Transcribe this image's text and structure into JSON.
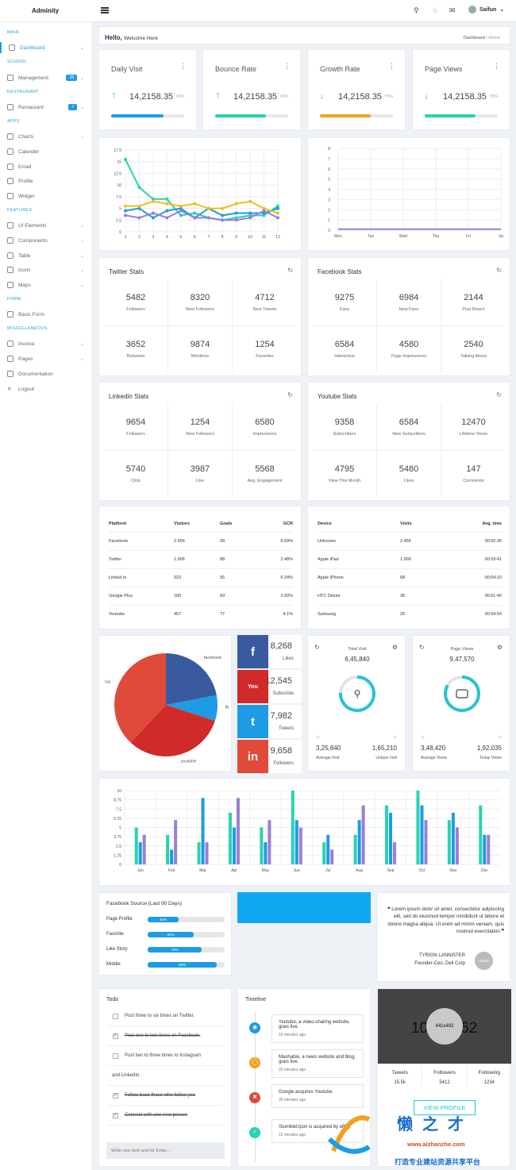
{
  "brand": "Adminity",
  "user": {
    "name": "Saifun"
  },
  "sidebar": {
    "sections": [
      "MAIN",
      "SCHOOL",
      "RESTAURANT",
      "APPS",
      "FEATURES",
      "FORM",
      "MISCELLANEOUS"
    ],
    "items": [
      {
        "label": "Dashboard"
      },
      {
        "label": "Management",
        "badge": "28"
      },
      {
        "label": "Restaurant",
        "badge": "7"
      },
      {
        "label": "Charts"
      },
      {
        "label": "Calender"
      },
      {
        "label": "Email"
      },
      {
        "label": "Profile"
      },
      {
        "label": "Widget"
      },
      {
        "label": "UI Elements"
      },
      {
        "label": "Components"
      },
      {
        "label": "Table"
      },
      {
        "label": "Icons"
      },
      {
        "label": "Maps"
      },
      {
        "label": "Basic Form"
      },
      {
        "label": "Invoice"
      },
      {
        "label": "Pages"
      },
      {
        "label": "Documentation"
      },
      {
        "label": "Logout"
      }
    ]
  },
  "header": {
    "hello": "Hello,",
    "welcome": "Welcome Here",
    "crumb_home": "Dashboard",
    "crumb_current": "Home"
  },
  "stats": [
    {
      "title": "Daily Visit",
      "value": "14,2158.35",
      "pct": "70%",
      "arrow": "↑",
      "color": "#1d9ce5",
      "progress": 0.72
    },
    {
      "title": "Bounce Rate",
      "value": "14,2158.35",
      "pct": "70%",
      "arrow": "↑",
      "color": "#28d3b0",
      "progress": 0.7
    },
    {
      "title": "Growth Rate",
      "value": "14,2158.35",
      "pct": "70%",
      "arrow": "↓",
      "color": "#f0a21e",
      "progress": 0.7
    },
    {
      "title": "Page Views",
      "value": "14,2158.35",
      "pct": "70%",
      "arrow": "↓",
      "color": "#28d3b0",
      "progress": 0.7
    }
  ],
  "chart_data": [
    {
      "type": "line",
      "x": [
        1,
        2,
        3,
        4,
        5,
        6,
        7,
        8,
        9,
        10,
        11,
        12
      ],
      "ylim": [
        0,
        17.5
      ],
      "yticks": [
        "0",
        "2.5",
        "5",
        "7.5",
        "10",
        "12.5",
        "15",
        "17.5"
      ],
      "series": [
        {
          "color": "#28d3b0",
          "values": [
            15.5,
            9.5,
            7,
            7,
            3.5,
            4,
            3,
            2.5,
            3,
            3.5,
            3.5,
            5.5
          ]
        },
        {
          "color": "#1d9ce5",
          "values": [
            4.5,
            5,
            3,
            4.5,
            5,
            3,
            5,
            3.5,
            4,
            4,
            4,
            5
          ]
        },
        {
          "color": "#f0bf1e",
          "values": [
            5.5,
            5.5,
            6.5,
            6,
            5.5,
            6,
            5,
            5,
            6,
            6.5,
            5,
            4
          ]
        },
        {
          "color": "#9b7fd4",
          "values": [
            3.5,
            3,
            4,
            3,
            4.5,
            3,
            3,
            2.5,
            2.5,
            3,
            4.5,
            3
          ]
        }
      ]
    },
    {
      "type": "line",
      "categories": [
        "Mon",
        "Tue",
        "Wed",
        "Thu",
        "Fri",
        "Sa"
      ],
      "ylim": [
        0,
        8
      ],
      "yticks": [
        "0",
        "1",
        "2",
        "3",
        "4",
        "5",
        "6",
        "7",
        "8"
      ],
      "series": [
        {
          "color": "#9b7fd4",
          "values": [
            0.1,
            0.1,
            0.1,
            0.1,
            0.1,
            0.1
          ]
        }
      ]
    },
    {
      "type": "pie",
      "labels": [
        "facebook",
        "fb",
        "youtube",
        "lus"
      ],
      "values": [
        22,
        8,
        32,
        38
      ],
      "colors": [
        "#3a5aa0",
        "#1d9ce5",
        "#d12a2a",
        "#e04a3a"
      ]
    },
    {
      "type": "bar",
      "categories": [
        "Jan",
        "Feb",
        "Mar",
        "Apr",
        "May",
        "Jun",
        "Jul",
        "Aug",
        "Sep",
        "Oct",
        "Nov",
        "Dec"
      ],
      "ylim": [
        0,
        10
      ],
      "yticks": [
        "0",
        "1.25",
        "2.5",
        "3.75",
        "5",
        "6.25",
        "7.5",
        "8.75",
        "10"
      ],
      "series": [
        {
          "color": "#28d3b0",
          "values": [
            5,
            4,
            3,
            7,
            5,
            10,
            3,
            4,
            8,
            10,
            6,
            8
          ]
        },
        {
          "color": "#1d9ce5",
          "values": [
            3,
            2,
            9,
            5,
            3,
            6,
            4,
            6,
            7,
            8,
            7,
            4
          ]
        },
        {
          "color": "#9b7fd4",
          "values": [
            4,
            6,
            3,
            9,
            6,
            5,
            2,
            8,
            3,
            6,
            5,
            4
          ]
        }
      ]
    }
  ],
  "twitter": {
    "title": "Twitter Stats",
    "cells": [
      {
        "v": "5482",
        "l": "Followers"
      },
      {
        "v": "8320",
        "l": "New Followers"
      },
      {
        "v": "4712",
        "l": "New Tweets"
      },
      {
        "v": "3652",
        "l": "Retweets"
      },
      {
        "v": "9874",
        "l": "Mentions"
      },
      {
        "v": "1254",
        "l": "Favorites"
      }
    ]
  },
  "facebook": {
    "title": "Facebook Stats",
    "cells": [
      {
        "v": "9275",
        "l": "Fans"
      },
      {
        "v": "6984",
        "l": "New Fans"
      },
      {
        "v": "2144",
        "l": "Post Reach"
      },
      {
        "v": "6584",
        "l": "Interaction"
      },
      {
        "v": "4580",
        "l": "Page Impressions"
      },
      {
        "v": "2540",
        "l": "Talking About"
      }
    ]
  },
  "linkedin": {
    "title": "Linkedin Stats",
    "cells": [
      {
        "v": "9654",
        "l": "Followers"
      },
      {
        "v": "1254",
        "l": "New Followers"
      },
      {
        "v": "6580",
        "l": "Impressions"
      },
      {
        "v": "5740",
        "l": "Click"
      },
      {
        "v": "3987",
        "l": "Like"
      },
      {
        "v": "5568",
        "l": "Avg. Engagement"
      }
    ]
  },
  "youtube": {
    "title": "Youtube Stats",
    "cells": [
      {
        "v": "9358",
        "l": "Subscribers"
      },
      {
        "v": "6584",
        "l": "New Subscribers"
      },
      {
        "v": "12470",
        "l": "Lifetime Views"
      },
      {
        "v": "4795",
        "l": "View This Month"
      },
      {
        "v": "5480",
        "l": "Likes"
      },
      {
        "v": "147",
        "l": "Comments"
      }
    ]
  },
  "platform_table": {
    "headers": [
      "Platform",
      "Visitors",
      "Goals",
      "GCR"
    ],
    "rows": [
      [
        "Facebook",
        "2.456",
        "99",
        "6.59%"
      ],
      [
        "Twitter",
        "1.006",
        "88",
        "2.48%"
      ],
      [
        "Linked in",
        "923",
        "55",
        "6.24%"
      ],
      [
        "Google Plus",
        "180",
        "69",
        "2.50%"
      ],
      [
        "Youtube",
        "457",
        "77",
        "4.1%"
      ]
    ]
  },
  "device_table": {
    "headers": [
      "Device",
      "Visits",
      "Avg. time"
    ],
    "rows": [
      [
        "Unknown",
        "2.456",
        "00:02:36"
      ],
      [
        "Apple iPad",
        "1.006",
        "00:03:41"
      ],
      [
        "Apple iPhone",
        "68",
        "00:04:10"
      ],
      [
        "HTC Desire",
        "38",
        "00:01:40"
      ],
      [
        "Samsung",
        "20",
        "00:04:54"
      ]
    ]
  },
  "social": [
    {
      "value": "8,268",
      "label": "Likes",
      "color": "#3a5aa0",
      "icon": "f"
    },
    {
      "value": "12,545",
      "label": "Subscribe",
      "color": "#d12a2a",
      "icon": "You"
    },
    {
      "value": "7,982",
      "label": "Tweets",
      "color": "#1d9ce5",
      "icon": "t"
    },
    {
      "value": "9,658",
      "label": "Followers",
      "color": "#e04a3a",
      "icon": "in"
    }
  ],
  "total_visit": {
    "title": "Total Visit",
    "value": "6,45,840",
    "a_val": "3,25,840",
    "a_lab": "Average Visit",
    "b_val": "1,65,210",
    "b_lab": "Unique Visit"
  },
  "page_views": {
    "title": "Page Views",
    "value": "9,47,570",
    "a_val": "3,48,420",
    "a_lab": "Average Views",
    "b_val": "1,92,035",
    "b_lab": "Today Views"
  },
  "fb_source": {
    "title": "Facebook Source (Last 90 Days)",
    "rows": [
      {
        "label": "Page Profile",
        "pct": "40%",
        "value": 0.4
      },
      {
        "label": "Favorite",
        "pct": "60%",
        "value": 0.6
      },
      {
        "label": "Like Story",
        "pct": "70%",
        "value": 0.7
      },
      {
        "label": "Mobile",
        "pct": "90%",
        "value": 0.9
      }
    ]
  },
  "quote": {
    "text": "Lorem ipsum dolor sit amet, consectetur adipiscing elit, sed do eiusmod tempor incididunt ut labore et dolore magna aliqua. Ut enim ad minim veniam, quis nostrud exercitation",
    "author": "TYRION LANNISTER",
    "role": "Founder-Ceo. Dell Corp",
    "avatar": "80x80"
  },
  "todo": {
    "title": "Todo",
    "placeholder": "Write new item and hit 'Enter...",
    "items": [
      {
        "text": "Post three to six times on Twitter.",
        "done": false
      },
      {
        "text": "Post one to two times on Facebook.",
        "done": true
      },
      {
        "text": "Post two to three times to Instagram",
        "done": false
      },
      {
        "text": "and LinkedIn.",
        "done": false
      },
      {
        "text": "Follow back those who follow you",
        "done": true
      },
      {
        "text": "Connect with one new person",
        "done": true
      }
    ]
  },
  "timeline": {
    "title": "Timeline",
    "items": [
      {
        "text": "Youtube, a video-sharing website, goes live.",
        "time": "10 minutes ago",
        "color": "#1d9ce5"
      },
      {
        "text": "Mashable, a news website and blog, goes live.",
        "time": "20 minutes ago",
        "color": "#f0a21e"
      },
      {
        "text": "Google acquires Youtube.",
        "time": "30 minutes ago",
        "color": "#e04a3a"
      },
      {
        "text": "StumbleUpon is acquired by eBay.",
        "time": "15 minutes ago",
        "color": "#28d3b0"
      }
    ]
  },
  "profile": {
    "cover_left": "10",
    "cover_right": "62",
    "avatar": "441x492",
    "tweets_label": "Tweets",
    "tweets": "15.5k",
    "followers_label": "Followers",
    "followers": "5412",
    "following_label": "Following",
    "following": "1234",
    "button": "VIEW PROFILE"
  },
  "watermark": {
    "title": "懒之才",
    "url": "www.aizhanzhe.com",
    "tagline": "打造专业建站资源共享平台"
  }
}
